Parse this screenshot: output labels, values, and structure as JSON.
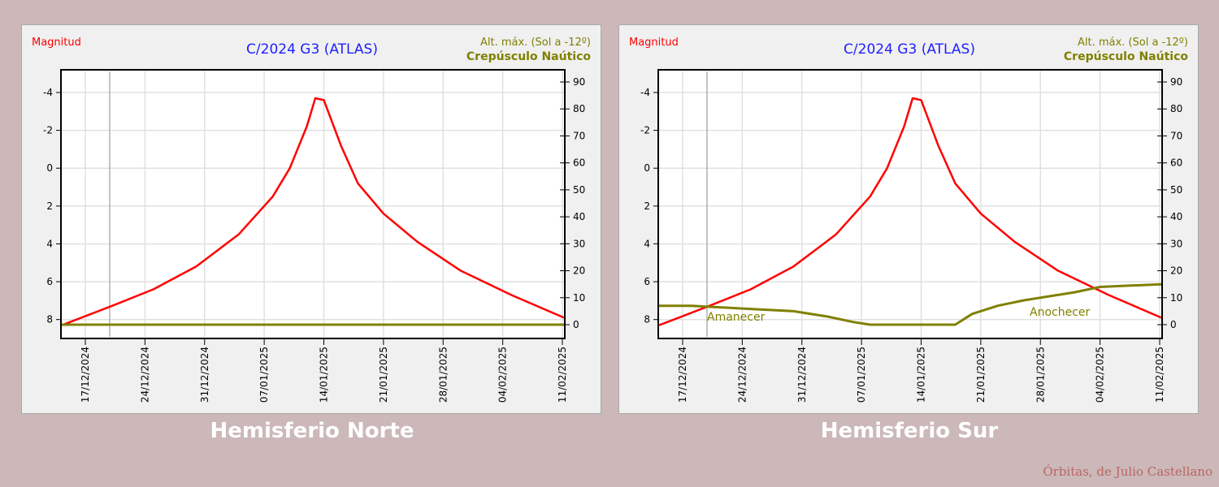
{
  "chart_data": [
    {
      "type": "line",
      "title": "C/2024 G3 (ATLAS)",
      "ylabel_left": "Magnitud",
      "ylabel_right": "Alt. máx. (Sol a -12º)",
      "ylabel_right_sub": "Crepúsculo Naútico",
      "x_tick_labels": [
        "17/12/2024",
        "24/12/2024",
        "31/12/2024",
        "07/01/2025",
        "14/01/2025",
        "21/01/2025",
        "28/01/2025",
        "04/02/2025",
        "11/02/2025"
      ],
      "left_axis": {
        "reversed": true,
        "range": [
          9,
          -5.2
        ],
        "ticks": [
          -4,
          -2,
          0,
          2,
          4,
          6,
          8
        ]
      },
      "right_axis": {
        "range": [
          0,
          90
        ],
        "ticks": [
          0,
          10,
          20,
          30,
          40,
          50,
          60,
          70,
          80,
          90
        ]
      },
      "grid": true,
      "annotations": [],
      "series": [
        {
          "name": "Magnitud",
          "color": "#ff0000",
          "x": [
            "2024-12-14",
            "2024-12-20",
            "2024-12-25",
            "2024-12-30",
            "2025-01-04",
            "2025-01-08",
            "2025-01-10",
            "2025-01-12",
            "2025-01-13",
            "2025-01-14",
            "2025-01-16",
            "2025-01-18",
            "2025-01-21",
            "2025-01-25",
            "2025-01-30",
            "2025-02-05",
            "2025-02-12"
          ],
          "y": [
            8.3,
            7.3,
            6.4,
            5.2,
            3.5,
            1.5,
            0,
            -2.2,
            -3.7,
            -3.6,
            -1.2,
            0.8,
            2.4,
            3.9,
            5.4,
            6.7,
            7.9
          ]
        },
        {
          "name": "Crepúsculo Naútico",
          "color": "#808000",
          "x": [
            "2024-12-14",
            "2025-02-12"
          ],
          "y": [
            0,
            0
          ]
        }
      ]
    },
    {
      "type": "line",
      "title": "C/2024 G3 (ATLAS)",
      "ylabel_left": "Magnitud",
      "ylabel_right": "Alt. máx. (Sol a -12º)",
      "ylabel_right_sub": "Crepúsculo Naútico",
      "x_tick_labels": [
        "17/12/2024",
        "24/12/2024",
        "31/12/2024",
        "07/01/2025",
        "14/01/2025",
        "21/01/2025",
        "28/01/2025",
        "04/02/2025",
        "11/02/2025"
      ],
      "left_axis": {
        "reversed": true,
        "range": [
          9,
          -5.2
        ],
        "ticks": [
          -4,
          -2,
          0,
          2,
          4,
          6,
          8
        ]
      },
      "right_axis": {
        "range": [
          0,
          90
        ],
        "ticks": [
          0,
          10,
          20,
          30,
          40,
          50,
          60,
          70,
          80,
          90
        ]
      },
      "grid": true,
      "annotations": [
        "Amanecer",
        "Anochecer"
      ],
      "series": [
        {
          "name": "Magnitud",
          "color": "#ff0000",
          "x": [
            "2024-12-14",
            "2024-12-20",
            "2024-12-25",
            "2024-12-30",
            "2025-01-04",
            "2025-01-08",
            "2025-01-10",
            "2025-01-12",
            "2025-01-13",
            "2025-01-14",
            "2025-01-16",
            "2025-01-18",
            "2025-01-21",
            "2025-01-25",
            "2025-01-30",
            "2025-02-05",
            "2025-02-12"
          ],
          "y": [
            8.3,
            7.3,
            6.4,
            5.2,
            3.5,
            1.5,
            0,
            -2.2,
            -3.7,
            -3.6,
            -1.2,
            0.8,
            2.4,
            3.9,
            5.4,
            6.7,
            7.9
          ]
        },
        {
          "name": "Crepúsculo Naútico",
          "color": "#808000",
          "x": [
            "2024-12-14",
            "2024-12-18",
            "2024-12-24",
            "2024-12-30",
            "2025-01-03",
            "2025-01-06",
            "2025-01-08",
            "2025-01-15",
            "2025-01-18",
            "2025-01-20",
            "2025-01-23",
            "2025-01-26",
            "2025-02-01",
            "2025-02-04",
            "2025-02-12"
          ],
          "y": [
            7,
            7,
            6,
            5,
            3,
            1,
            0,
            0,
            0,
            4,
            7,
            9,
            12,
            14,
            15
          ]
        }
      ]
    }
  ],
  "captions": {
    "north": "Hemisferio Norte",
    "south": "Hemisferio Sur"
  },
  "credit": "Órbitas, de Julio Castellano",
  "colors": {
    "magnitude": "#ff0000",
    "twilight": "#808000",
    "title": "#1f1fff",
    "background": "#ccb8b8"
  }
}
